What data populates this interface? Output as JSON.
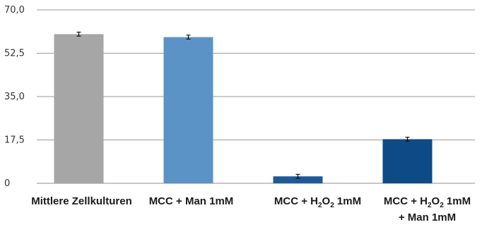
{
  "chart_data": {
    "type": "bar",
    "title": "",
    "xlabel": "",
    "ylabel": "",
    "ylim": [
      0,
      70
    ],
    "yticks": [
      "0",
      "17,5",
      "35,0",
      "52,5",
      "70,0"
    ],
    "ytick_values": [
      0,
      17.5,
      35,
      52.5,
      70
    ],
    "grid": "horizontal",
    "categories": [
      "Mittlere Zellkulturen",
      "MCC + Man 1mM",
      "MCC + H2O2 1mM",
      "MCC + H2O2 1mM + Man 1mM"
    ],
    "category_lines": [
      [
        {
          "t": "Mittlere Zellkulturen"
        }
      ],
      [
        {
          "t": "MCC + Man 1mM"
        }
      ],
      [
        {
          "t": "MCC + H"
        },
        {
          "t": "2",
          "sub": true
        },
        {
          "t": "O"
        },
        {
          "t": "2",
          "sub": true
        },
        {
          "t": " 1mM"
        }
      ],
      [
        {
          "t": "MCC + H"
        },
        {
          "t": "2",
          "sub": true
        },
        {
          "t": "O"
        },
        {
          "t": "2",
          "sub": true
        },
        {
          "t": " 1mM"
        }
      ],
      [
        {
          "t": "+ Man 1mM"
        }
      ]
    ],
    "values": [
      60.2,
      59.0,
      2.8,
      17.8
    ],
    "errors": [
      0.8,
      0.8,
      0.8,
      0.8
    ],
    "colors": [
      "#a6a6a6",
      "#5b93c7",
      "#1f5a96",
      "#0e4a86"
    ]
  }
}
